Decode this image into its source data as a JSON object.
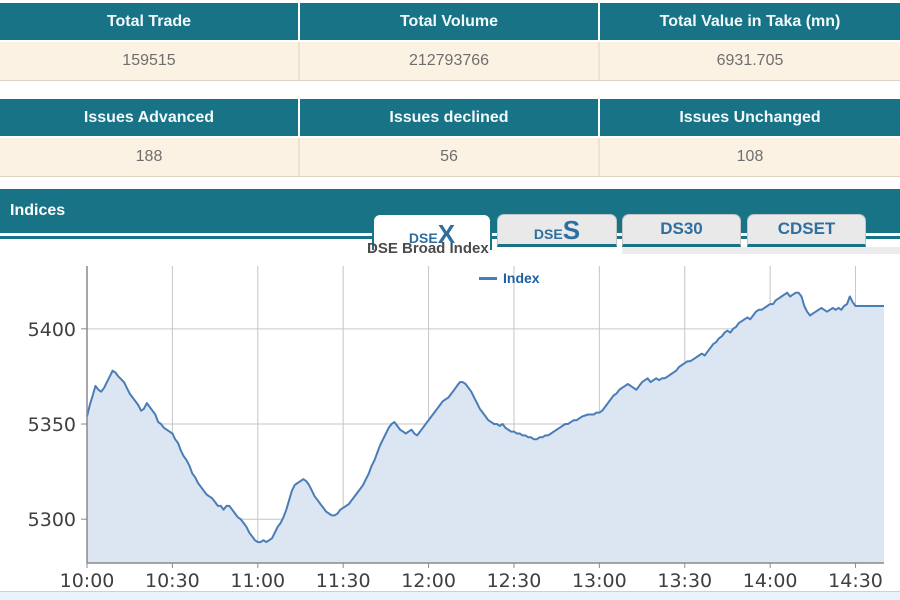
{
  "summary_top": {
    "headers": [
      "Total Trade",
      "Total Volume",
      "Total Value in Taka (mn)"
    ],
    "values": [
      "159515",
      "212793766",
      "6931.705"
    ]
  },
  "summary_issues": {
    "headers": [
      "Issues Advanced",
      "Issues declined",
      "Issues Unchanged"
    ],
    "values": [
      "188",
      "56",
      "108"
    ]
  },
  "indices": {
    "title": "Indices",
    "tabs": [
      {
        "prefix": "DSE",
        "suffix": "X",
        "active": true
      },
      {
        "prefix": "DSE",
        "suffix": "S",
        "active": false
      },
      {
        "prefix": "DS30",
        "suffix": "",
        "active": false
      },
      {
        "prefix": "CDSET",
        "suffix": "",
        "active": false
      }
    ]
  },
  "chart_data": {
    "type": "area",
    "title": "DSE Broad Index",
    "legend_label": "Index",
    "legend_position": "top-center",
    "grid": true,
    "xlabel": "",
    "ylabel": "",
    "x_ticks": [
      "10:00",
      "10:30",
      "11:00",
      "11:30",
      "12:00",
      "12:30",
      "13:00",
      "13:30",
      "14:00",
      "14:30"
    ],
    "x_tick_minutes": [
      0,
      30,
      60,
      90,
      120,
      150,
      180,
      210,
      240,
      270
    ],
    "y_ticks": [
      5300,
      5350,
      5400
    ],
    "ylim": [
      5277,
      5433
    ],
    "xlim_minutes": [
      0,
      280
    ],
    "series": [
      {
        "name": "Index",
        "points": [
          [
            0,
            5354
          ],
          [
            1,
            5360
          ],
          [
            2,
            5365
          ],
          [
            3,
            5370
          ],
          [
            4,
            5368
          ],
          [
            5,
            5367
          ],
          [
            6,
            5369
          ],
          [
            7,
            5372
          ],
          [
            8,
            5375
          ],
          [
            9,
            5378
          ],
          [
            10,
            5377
          ],
          [
            11,
            5375
          ],
          [
            13,
            5372
          ],
          [
            14,
            5369
          ],
          [
            15,
            5366
          ],
          [
            16,
            5364
          ],
          [
            17,
            5362
          ],
          [
            18,
            5360
          ],
          [
            19,
            5357
          ],
          [
            20,
            5358
          ],
          [
            21,
            5361
          ],
          [
            22,
            5359
          ],
          [
            23,
            5357
          ],
          [
            24,
            5355
          ],
          [
            25,
            5351
          ],
          [
            26,
            5350
          ],
          [
            27,
            5348
          ],
          [
            28,
            5347
          ],
          [
            29,
            5346
          ],
          [
            30,
            5345
          ],
          [
            31,
            5342
          ],
          [
            32,
            5340
          ],
          [
            33,
            5336
          ],
          [
            34,
            5333
          ],
          [
            35,
            5331
          ],
          [
            36,
            5328
          ],
          [
            37,
            5324
          ],
          [
            38,
            5322
          ],
          [
            39,
            5319
          ],
          [
            40,
            5317
          ],
          [
            41,
            5315
          ],
          [
            42,
            5313
          ],
          [
            43,
            5312
          ],
          [
            44,
            5311
          ],
          [
            45,
            5309
          ],
          [
            46,
            5307
          ],
          [
            47,
            5307
          ],
          [
            48,
            5305
          ],
          [
            49,
            5307
          ],
          [
            50,
            5307
          ],
          [
            51,
            5305
          ],
          [
            52,
            5303
          ],
          [
            53,
            5301
          ],
          [
            54,
            5300
          ],
          [
            55,
            5298
          ],
          [
            56,
            5296
          ],
          [
            57,
            5293
          ],
          [
            58,
            5291
          ],
          [
            59,
            5289
          ],
          [
            60,
            5288
          ],
          [
            61,
            5288
          ],
          [
            62,
            5289
          ],
          [
            63,
            5288
          ],
          [
            64,
            5289
          ],
          [
            65,
            5290
          ],
          [
            66,
            5293
          ],
          [
            67,
            5296
          ],
          [
            68,
            5298
          ],
          [
            69,
            5301
          ],
          [
            70,
            5305
          ],
          [
            71,
            5310
          ],
          [
            72,
            5315
          ],
          [
            73,
            5318
          ],
          [
            74,
            5319
          ],
          [
            75,
            5320
          ],
          [
            76,
            5321
          ],
          [
            77,
            5320
          ],
          [
            78,
            5318
          ],
          [
            79,
            5315
          ],
          [
            80,
            5312
          ],
          [
            81,
            5310
          ],
          [
            82,
            5308
          ],
          [
            83,
            5306
          ],
          [
            84,
            5304
          ],
          [
            85,
            5303
          ],
          [
            86,
            5302
          ],
          [
            87,
            5302
          ],
          [
            88,
            5303
          ],
          [
            89,
            5305
          ],
          [
            90,
            5306
          ],
          [
            91,
            5307
          ],
          [
            92,
            5308
          ],
          [
            93,
            5310
          ],
          [
            94,
            5312
          ],
          [
            95,
            5314
          ],
          [
            96,
            5316
          ],
          [
            97,
            5318
          ],
          [
            98,
            5321
          ],
          [
            99,
            5324
          ],
          [
            100,
            5328
          ],
          [
            101,
            5331
          ],
          [
            102,
            5335
          ],
          [
            103,
            5339
          ],
          [
            104,
            5342
          ],
          [
            105,
            5345
          ],
          [
            106,
            5348
          ],
          [
            107,
            5350
          ],
          [
            108,
            5351
          ],
          [
            109,
            5349
          ],
          [
            110,
            5347
          ],
          [
            111,
            5346
          ],
          [
            112,
            5345
          ],
          [
            113,
            5346
          ],
          [
            114,
            5347
          ],
          [
            115,
            5345
          ],
          [
            116,
            5344
          ],
          [
            117,
            5346
          ],
          [
            118,
            5348
          ],
          [
            119,
            5350
          ],
          [
            120,
            5352
          ],
          [
            121,
            5354
          ],
          [
            122,
            5356
          ],
          [
            123,
            5358
          ],
          [
            124,
            5360
          ],
          [
            125,
            5362
          ],
          [
            127,
            5364
          ],
          [
            128,
            5366
          ],
          [
            129,
            5368
          ],
          [
            130,
            5370
          ],
          [
            131,
            5372
          ],
          [
            132,
            5372
          ],
          [
            133,
            5371
          ],
          [
            134,
            5369
          ],
          [
            135,
            5367
          ],
          [
            136,
            5364
          ],
          [
            137,
            5361
          ],
          [
            138,
            5358
          ],
          [
            139,
            5356
          ],
          [
            140,
            5354
          ],
          [
            141,
            5352
          ],
          [
            142,
            5351
          ],
          [
            143,
            5350
          ],
          [
            144,
            5350
          ],
          [
            145,
            5349
          ],
          [
            146,
            5350
          ],
          [
            147,
            5348
          ],
          [
            148,
            5347
          ],
          [
            149,
            5346
          ],
          [
            150,
            5346
          ],
          [
            151,
            5345
          ],
          [
            152,
            5345
          ],
          [
            153,
            5344
          ],
          [
            154,
            5344
          ],
          [
            155,
            5343
          ],
          [
            156,
            5343
          ],
          [
            157,
            5342
          ],
          [
            158,
            5342
          ],
          [
            159,
            5343
          ],
          [
            160,
            5343
          ],
          [
            161,
            5344
          ],
          [
            162,
            5344
          ],
          [
            163,
            5345
          ],
          [
            164,
            5346
          ],
          [
            165,
            5347
          ],
          [
            166,
            5348
          ],
          [
            167,
            5349
          ],
          [
            168,
            5350
          ],
          [
            169,
            5350
          ],
          [
            170,
            5351
          ],
          [
            171,
            5352
          ],
          [
            172,
            5352
          ],
          [
            173,
            5353
          ],
          [
            174,
            5354
          ],
          [
            176,
            5355
          ],
          [
            178,
            5355
          ],
          [
            179,
            5356
          ],
          [
            180,
            5356
          ],
          [
            181,
            5357
          ],
          [
            182,
            5359
          ],
          [
            183,
            5361
          ],
          [
            184,
            5363
          ],
          [
            185,
            5365
          ],
          [
            186,
            5366
          ],
          [
            187,
            5368
          ],
          [
            188,
            5369
          ],
          [
            189,
            5370
          ],
          [
            190,
            5371
          ],
          [
            191,
            5370
          ],
          [
            192,
            5369
          ],
          [
            193,
            5368
          ],
          [
            194,
            5370
          ],
          [
            195,
            5372
          ],
          [
            196,
            5373
          ],
          [
            197,
            5374
          ],
          [
            198,
            5372
          ],
          [
            199,
            5373
          ],
          [
            200,
            5374
          ],
          [
            201,
            5373
          ],
          [
            202,
            5374
          ],
          [
            203,
            5374
          ],
          [
            204,
            5375
          ],
          [
            205,
            5376
          ],
          [
            206,
            5377
          ],
          [
            207,
            5378
          ],
          [
            208,
            5380
          ],
          [
            209,
            5381
          ],
          [
            210,
            5382
          ],
          [
            211,
            5383
          ],
          [
            212,
            5383
          ],
          [
            213,
            5384
          ],
          [
            214,
            5385
          ],
          [
            215,
            5386
          ],
          [
            216,
            5387
          ],
          [
            217,
            5386
          ],
          [
            218,
            5388
          ],
          [
            219,
            5390
          ],
          [
            220,
            5392
          ],
          [
            221,
            5393
          ],
          [
            222,
            5395
          ],
          [
            223,
            5396
          ],
          [
            224,
            5398
          ],
          [
            225,
            5399
          ],
          [
            226,
            5398
          ],
          [
            227,
            5400
          ],
          [
            228,
            5401
          ],
          [
            229,
            5403
          ],
          [
            230,
            5404
          ],
          [
            231,
            5405
          ],
          [
            232,
            5406
          ],
          [
            233,
            5405
          ],
          [
            234,
            5407
          ],
          [
            235,
            5409
          ],
          [
            236,
            5410
          ],
          [
            237,
            5410
          ],
          [
            238,
            5411
          ],
          [
            239,
            5412
          ],
          [
            240,
            5413
          ],
          [
            241,
            5413
          ],
          [
            242,
            5415
          ],
          [
            243,
            5416
          ],
          [
            244,
            5417
          ],
          [
            245,
            5418
          ],
          [
            246,
            5419
          ],
          [
            247,
            5417
          ],
          [
            248,
            5418
          ],
          [
            249,
            5419
          ],
          [
            250,
            5419
          ],
          [
            251,
            5417
          ],
          [
            252,
            5412
          ],
          [
            253,
            5409
          ],
          [
            254,
            5407
          ],
          [
            255,
            5408
          ],
          [
            256,
            5409
          ],
          [
            257,
            5410
          ],
          [
            258,
            5411
          ],
          [
            259,
            5410
          ],
          [
            260,
            5409
          ],
          [
            261,
            5410
          ],
          [
            262,
            5411
          ],
          [
            263,
            5410
          ],
          [
            264,
            5411
          ],
          [
            265,
            5410
          ],
          [
            266,
            5412
          ],
          [
            267,
            5413
          ],
          [
            268,
            5417
          ],
          [
            269,
            5414
          ],
          [
            270,
            5412
          ],
          [
            273,
            5412
          ],
          [
            276,
            5412
          ],
          [
            280,
            5412
          ]
        ]
      }
    ],
    "colors": {
      "line": "#4a7db8",
      "fill": "#dce6f2",
      "grid": "#c6c6c6",
      "axis": "#8a8a8a",
      "tick_text": "#3f3f3f"
    }
  },
  "colors": {
    "teal": "#177385",
    "cream_row": "#fcf2e4",
    "tab_text": "#2e6f9f",
    "value_text": "#6e6e6e",
    "title_text": "#4b4b4b",
    "legend_text": "#1d5fa0"
  }
}
